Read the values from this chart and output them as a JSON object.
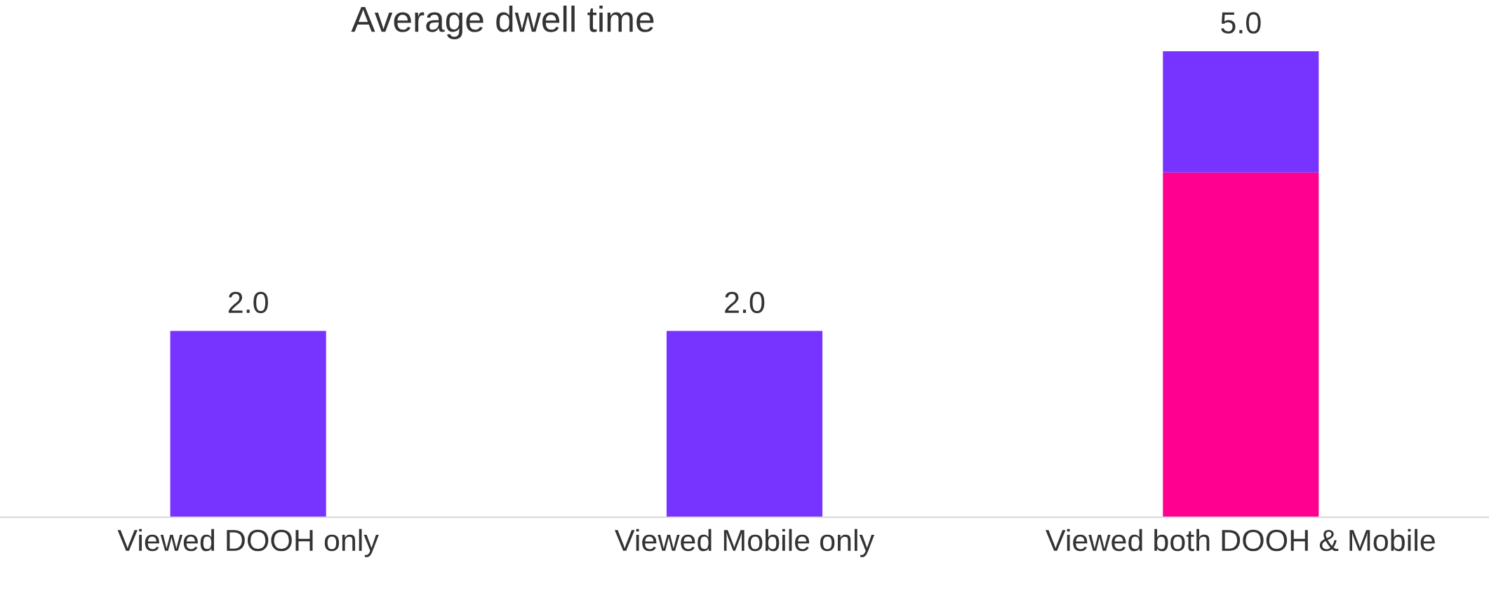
{
  "chart_data": {
    "type": "bar",
    "title": "Average dwell time",
    "categories": [
      "Viewed DOOH only",
      "Viewed Mobile only",
      "Viewed both DOOH & Mobile"
    ],
    "stacked": true,
    "series": [
      {
        "color": "#ff0090",
        "values": [
          null,
          null,
          3.7
        ]
      },
      {
        "color": "#7733ff",
        "values": [
          2.0,
          2.0,
          1.3
        ],
        "value_labels": [
          "2.0",
          "2.0",
          null
        ]
      }
    ],
    "totals": [
      null,
      null,
      "5.0"
    ],
    "tick_labels": "x"
  }
}
